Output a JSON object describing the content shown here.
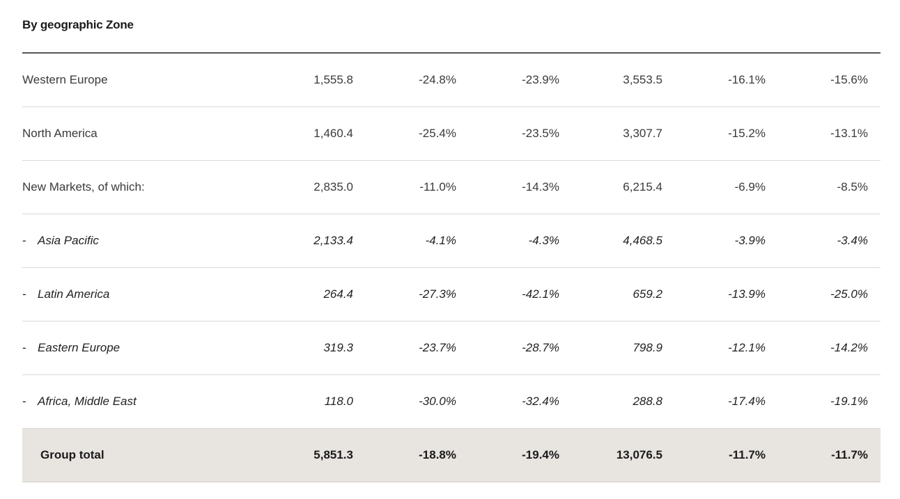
{
  "heading": "By geographic Zone",
  "rows": [
    {
      "label": "Western Europe",
      "prefix": "",
      "values": [
        "1,555.8",
        "-24.8%",
        "-23.9%",
        "3,553.5",
        "-16.1%",
        "-15.6%"
      ]
    },
    {
      "label": "North America",
      "prefix": "",
      "values": [
        "1,460.4",
        "-25.4%",
        "-23.5%",
        "3,307.7",
        "-15.2%",
        "-13.1%"
      ]
    },
    {
      "label": "New Markets, of which:",
      "prefix": "",
      "values": [
        "2,835.0",
        "-11.0%",
        "-14.3%",
        "6,215.4",
        "-6.9%",
        "-8.5%"
      ]
    },
    {
      "label": "Asia Pacific",
      "prefix": "-",
      "values": [
        "2,133.4",
        "-4.1%",
        "-4.3%",
        "4,468.5",
        "-3.9%",
        "-3.4%"
      ]
    },
    {
      "label": "Latin America",
      "prefix": "-",
      "values": [
        "264.4",
        "-27.3%",
        "-42.1%",
        "659.2",
        "-13.9%",
        "-25.0%"
      ]
    },
    {
      "label": "Eastern Europe",
      "prefix": "-",
      "values": [
        "319.3",
        "-23.7%",
        "-28.7%",
        "798.9",
        "-12.1%",
        "-14.2%"
      ]
    },
    {
      "label": "Africa, Middle East",
      "prefix": "-",
      "values": [
        "118.0",
        "-30.0%",
        "-32.4%",
        "288.8",
        "-17.4%",
        "-19.1%"
      ]
    }
  ],
  "total": {
    "label": "Group total",
    "values": [
      "5,851.3",
      "-18.8%",
      "-19.4%",
      "13,076.5",
      "-11.7%",
      "-11.7%"
    ]
  }
}
